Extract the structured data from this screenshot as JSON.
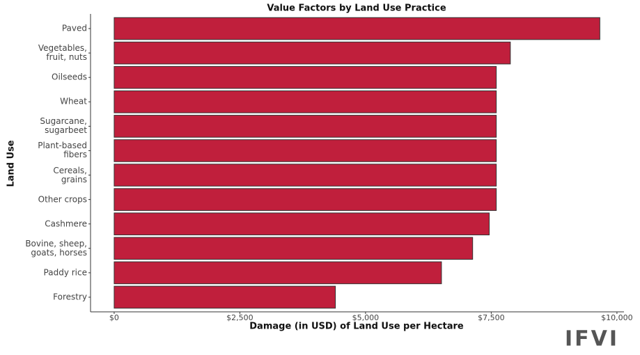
{
  "chart_data": {
    "type": "bar",
    "orientation": "horizontal",
    "title": "Value Factors by Land Use Practice",
    "x_label": "Damage (in USD) of Land Use per Hectare",
    "y_label": "Land Use",
    "categories": [
      "Paved",
      "Vegetables,\nfruit, nuts",
      "Oilseeds",
      "Wheat",
      "Sugarcane,\nsugarbeet",
      "Plant-based\nfibers",
      "Cereals,\ngrains",
      "Other crops",
      "Cashmere",
      "Bovine, sheep,\ngoats, horses",
      "Paddy rice",
      "Forestry"
    ],
    "values": [
      9660,
      7880,
      7600,
      7600,
      7600,
      7600,
      7600,
      7600,
      7460,
      7130,
      6510,
      4400
    ],
    "color": "#c01f3c",
    "xlim": [
      -470,
      10140
    ],
    "xticks": [
      {
        "value": 0,
        "label": "$0"
      },
      {
        "value": 2500,
        "label": "$2,500"
      },
      {
        "value": 5000,
        "label": "$5,000"
      },
      {
        "value": 7500,
        "label": "$7,500"
      },
      {
        "value": 10000,
        "label": "$10,000"
      }
    ],
    "grid": false
  },
  "logo": "IFVI"
}
